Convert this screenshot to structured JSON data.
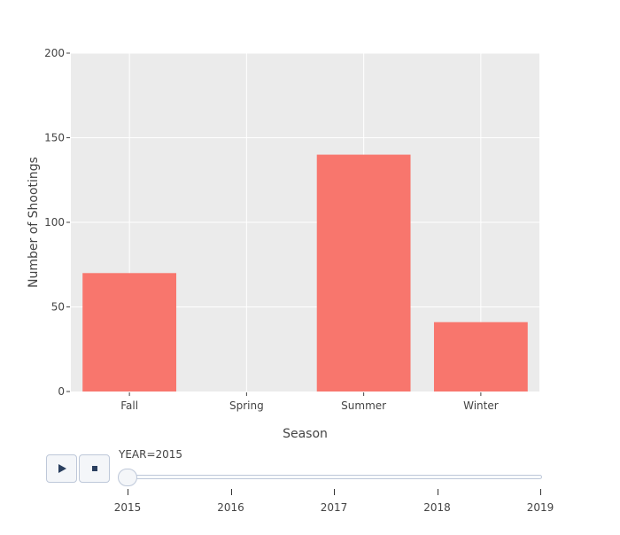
{
  "chart_data": {
    "type": "bar",
    "title": "",
    "xlabel": "Season",
    "ylabel": "Number of Shootings",
    "categories": [
      "Fall",
      "Spring",
      "Summer",
      "Winter"
    ],
    "values": [
      70,
      0,
      140,
      41
    ],
    "ylim": [
      0,
      200
    ],
    "yticks": [
      0,
      50,
      100,
      150,
      200
    ],
    "grid": true,
    "legend": "none",
    "colors": {
      "bar": "#F8766D",
      "plot_background": "#EBEBEB",
      "grid": "#FFFFFF"
    }
  },
  "animation": {
    "play_icon": "play-icon",
    "pause_icon": "stop-icon",
    "current_label": "YEAR=2015",
    "steps": [
      "2015",
      "2016",
      "2017",
      "2018",
      "2019"
    ],
    "active_step": 0
  }
}
